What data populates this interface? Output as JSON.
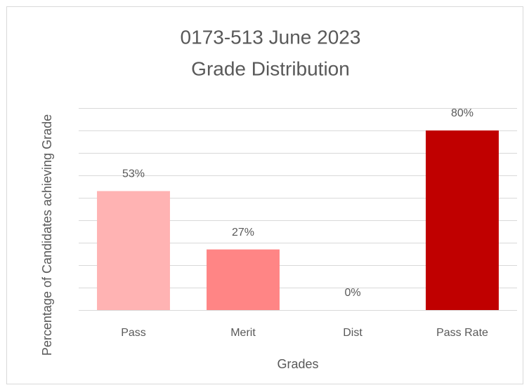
{
  "chart_data": {
    "type": "bar",
    "title": [
      "0173-513 June 2023",
      "Grade Distribution"
    ],
    "y_label": "Percentage of Candidates achieving Grade",
    "x_label": "Grades",
    "categories": [
      "Pass",
      "Merit",
      "Dist",
      "Pass Rate"
    ],
    "values": [
      53,
      27,
      0,
      80
    ],
    "value_labels": [
      "53%",
      "27%",
      "0%",
      "80%"
    ],
    "colors": [
      "#ffb3b3",
      "#ff8585",
      "#ff5c5c",
      "#c00000"
    ],
    "ylim": [
      0,
      90
    ],
    "yticks": [
      0,
      10,
      20,
      30,
      40,
      50,
      60,
      70,
      80,
      90
    ],
    "grid": true
  }
}
